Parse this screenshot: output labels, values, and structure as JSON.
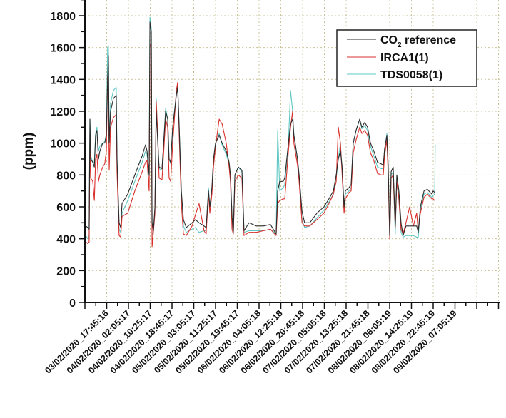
{
  "chart_data": {
    "type": "line",
    "title": "",
    "xlabel": "",
    "ylabel": "(ppm)",
    "ylim": [
      0,
      1900
    ],
    "yticks": [
      "0",
      "200",
      "400",
      "600",
      "800",
      "1000",
      "1200",
      "1400",
      "1600",
      "1800"
    ],
    "ytick_values": [
      0,
      200,
      400,
      600,
      800,
      1000,
      1200,
      1400,
      1600,
      1800
    ],
    "x_units": "hours since 03/02/2020 09:25:16",
    "xlim": [
      0,
      158.3
    ],
    "x_major_step_hours": 8.333,
    "xtick_labels": [
      "03/02/2020_17:45:16",
      "04/02/2020_02:05:17",
      "04/02/2020_10:25:17",
      "04/02/2020_18:45:17",
      "05/02/2020_03:05:17",
      "05/02/2020_11:25:17",
      "05/02/2020_19:45:17",
      "06/02/2020_04:05:18",
      "06/02/2020_12:25:18",
      "06/02/2020_20:45:18",
      "07/02/2020_05:05:18",
      "07/02/2020_13:25:18",
      "07/02/2020_21:45:18",
      "08/02/2020_06:05:19",
      "08/02/2020_14:25:19",
      "08/02/2020_22:45:19",
      "09/02/2020_07:05:19"
    ],
    "grid": true,
    "legend_position": "top-right",
    "x": [
      0,
      0.3,
      1.1,
      1.6,
      1.9,
      2.2,
      3.0,
      3.6,
      4.1,
      4.6,
      5.2,
      5.7,
      6.8,
      7.6,
      8.2,
      8.7,
      9.0,
      9.3,
      9.8,
      10.9,
      12.0,
      12.3,
      13.1,
      13.7,
      14.2,
      16.4,
      19.1,
      21.9,
      23.2,
      23.8,
      24.6,
      24.9,
      25.4,
      25.7,
      26.2,
      26.8,
      27.3,
      27.9,
      28.4,
      29.5,
      30.9,
      31.7,
      32.2,
      32.8,
      33.6,
      35.0,
      35.5,
      36.1,
      36.9,
      37.7,
      38.8,
      41.0,
      42.3,
      43.7,
      45.6,
      46.4,
      47.3,
      47.8,
      48.6,
      49.2,
      50.0,
      51.4,
      52.5,
      54.1,
      55.2,
      55.7,
      56.3,
      56.8,
      57.4,
      58.7,
      60.1,
      60.9,
      62.8,
      65.6,
      68.3,
      71.0,
      73.2,
      73.8,
      74.6,
      75.9,
      76.5,
      77.9,
      78.7,
      79.5,
      80.0,
      81.4,
      82.0,
      83.1,
      84.1,
      86.1,
      88.8,
      91.5,
      93.4,
      95.1,
      96.2,
      97.0,
      97.8,
      98.4,
      99.2,
      99.7,
      101.1,
      101.9,
      102.7,
      103.8,
      105.2,
      106.0,
      107.1,
      108.2,
      109.3,
      110.6,
      112.0,
      113.4,
      114.2,
      114.7,
      115.6,
      116.1,
      116.7,
      117.2,
      118.0,
      118.8,
      119.4,
      120.2,
      121.0,
      121.8,
      122.9,
      124.3,
      125.7,
      127.0,
      127.6,
      128.4,
      129.8,
      131.1,
      132.2,
      132.8,
      133.3,
      133.9,
      134.1
    ],
    "series": [
      {
        "name": "CO2 reference",
        "label_main": "CO",
        "label_sub": "2",
        "label_rest": " reference",
        "color": "#2b2b2b",
        "values": [
          600,
          480,
          470,
          460,
          1150,
          900,
          880,
          850,
          1050,
          1080,
          900,
          950,
          1000,
          1000,
          1050,
          1400,
          1550,
          1000,
          1200,
          1280,
          1300,
          900,
          500,
          470,
          620,
          680,
          800,
          920,
          990,
          950,
          800,
          1760,
          1700,
          500,
          450,
          600,
          1200,
          1000,
          850,
          840,
          1200,
          1150,
          900,
          880,
          1100,
          1300,
          1350,
          1100,
          700,
          520,
          470,
          500,
          520,
          500,
          480,
          470,
          700,
          600,
          720,
          900,
          1000,
          1050,
          1000,
          950,
          880,
          800,
          540,
          440,
          800,
          850,
          830,
          450,
          500,
          480,
          480,
          490,
          430,
          700,
          760,
          760,
          780,
          1000,
          1120,
          1150,
          1050,
          900,
          800,
          570,
          500,
          500,
          560,
          600,
          650,
          700,
          800,
          900,
          950,
          860,
          600,
          700,
          720,
          740,
          1000,
          1080,
          1150,
          1100,
          1130,
          1100,
          1000,
          950,
          880,
          870,
          860,
          960,
          1050,
          860,
          420,
          820,
          850,
          480,
          800,
          700,
          500,
          420,
          480,
          480,
          480,
          480,
          440,
          600,
          700,
          710,
          690,
          680,
          700,
          690,
          690
        ]
      },
      {
        "name": "IRCA1(1)",
        "color": "#d9302c",
        "values": [
          580,
          380,
          370,
          380,
          1000,
          780,
          760,
          640,
          900,
          930,
          760,
          800,
          850,
          870,
          950,
          1420,
          1400,
          830,
          1100,
          1160,
          1180,
          820,
          420,
          410,
          540,
          560,
          700,
          820,
          880,
          890,
          700,
          1620,
          1600,
          350,
          440,
          560,
          1260,
          1050,
          780,
          770,
          1150,
          1100,
          780,
          760,
          1000,
          1330,
          1380,
          1050,
          620,
          430,
          420,
          480,
          550,
          620,
          450,
          430,
          680,
          560,
          680,
          850,
          980,
          1150,
          1120,
          1000,
          850,
          760,
          460,
          430,
          760,
          800,
          780,
          420,
          440,
          440,
          450,
          460,
          420,
          620,
          640,
          650,
          650,
          950,
          1100,
          1200,
          1000,
          860,
          760,
          500,
          480,
          480,
          520,
          560,
          620,
          680,
          760,
          1100,
          1000,
          820,
          560,
          650,
          690,
          700,
          940,
          1020,
          1100,
          1060,
          1080,
          1050,
          940,
          890,
          810,
          800,
          800,
          920,
          1020,
          800,
          400,
          780,
          800,
          470,
          760,
          650,
          460,
          430,
          500,
          600,
          480,
          560,
          450,
          560,
          660,
          680,
          660,
          650,
          650,
          640,
          640
        ]
      },
      {
        "name": "TDS0058(1)",
        "color": "#5fc8c4",
        "values": [
          600,
          420,
          400,
          420,
          1150,
          920,
          880,
          880,
          1060,
          1100,
          950,
          980,
          1000,
          1010,
          1060,
          1600,
          1610,
          1000,
          1250,
          1330,
          1350,
          900,
          460,
          440,
          560,
          640,
          760,
          880,
          950,
          930,
          780,
          1790,
          1720,
          420,
          440,
          580,
          1280,
          1020,
          840,
          830,
          1220,
          1150,
          900,
          870,
          1100,
          1310,
          1380,
          1100,
          680,
          480,
          440,
          460,
          470,
          440,
          450,
          450,
          720,
          600,
          700,
          880,
          1000,
          1060,
          990,
          930,
          870,
          780,
          500,
          430,
          800,
          850,
          820,
          440,
          450,
          450,
          450,
          460,
          430,
          1080,
          700,
          720,
          740,
          1000,
          1330,
          1200,
          1050,
          900,
          780,
          520,
          470,
          480,
          530,
          580,
          630,
          680,
          780,
          900,
          1000,
          850,
          600,
          680,
          700,
          720,
          1000,
          1080,
          1150,
          1090,
          1110,
          1080,
          980,
          920,
          850,
          840,
          840,
          960,
          1060,
          850,
          400,
          800,
          820,
          430,
          780,
          640,
          440,
          410,
          420,
          420,
          420,
          410,
          410,
          580,
          680,
          690,
          670,
          660,
          670,
          680,
          990
        ]
      }
    ]
  }
}
